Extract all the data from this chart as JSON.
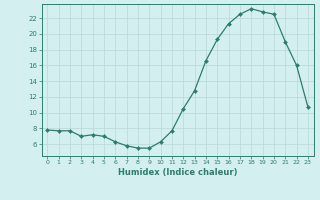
{
  "x": [
    0,
    1,
    2,
    3,
    4,
    5,
    6,
    7,
    8,
    9,
    10,
    11,
    12,
    13,
    14,
    15,
    16,
    17,
    18,
    19,
    20,
    21,
    22,
    23
  ],
  "y": [
    7.8,
    7.7,
    7.7,
    7.0,
    7.2,
    7.0,
    6.3,
    5.8,
    5.5,
    5.5,
    6.3,
    7.7,
    10.5,
    12.8,
    16.6,
    19.3,
    21.3,
    22.5,
    23.2,
    22.8,
    22.5,
    19.0,
    16.0,
    10.7
  ],
  "xlabel": "Humidex (Indice chaleur)",
  "line_color": "#2d7d6e",
  "marker": "D",
  "marker_size": 2.0,
  "bg_color": "#d4efef",
  "grid_color": "#b8d8d8",
  "xlim": [
    -0.5,
    23.5
  ],
  "ylim": [
    4.5,
    23.8
  ],
  "yticks": [
    6,
    8,
    10,
    12,
    14,
    16,
    18,
    20,
    22
  ],
  "xticks": [
    0,
    1,
    2,
    3,
    4,
    5,
    6,
    7,
    8,
    9,
    10,
    11,
    12,
    13,
    14,
    15,
    16,
    17,
    18,
    19,
    20,
    21,
    22,
    23
  ]
}
